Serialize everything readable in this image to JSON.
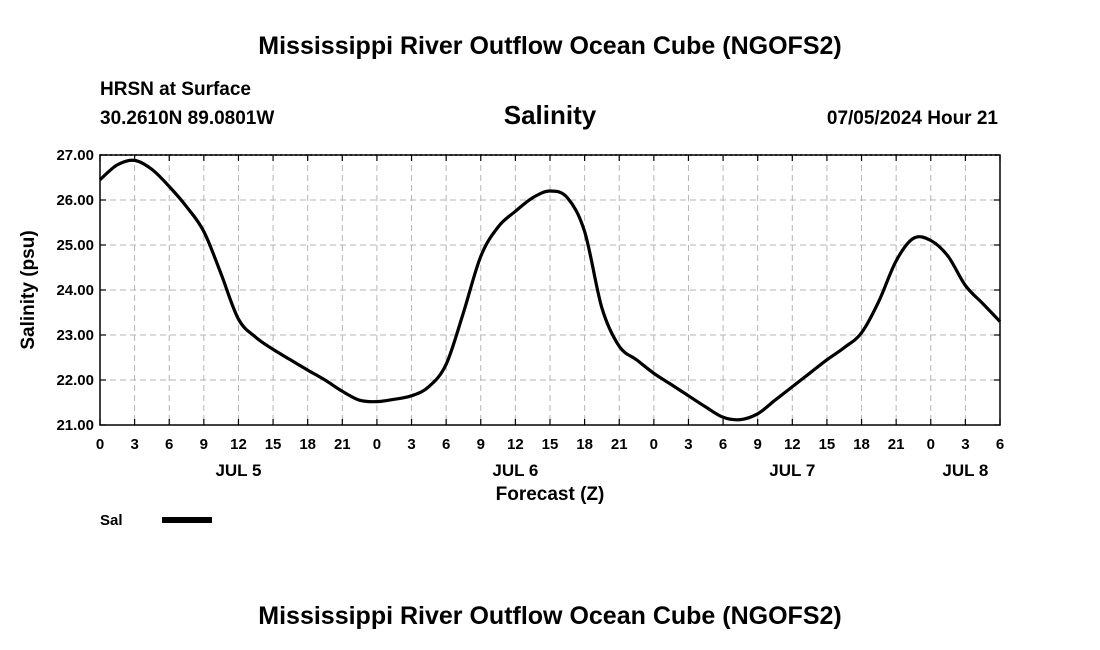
{
  "header": {
    "title_top": "Mississippi River Outflow Ocean Cube (NGOFS2)",
    "title_bottom": "Mississippi River Outflow Ocean Cube (NGOFS2)",
    "station": "HRSN at Surface",
    "coords": "30.2610N  89.0801W",
    "datetime": "07/05/2024 Hour 21"
  },
  "chart_data": {
    "type": "line",
    "title": "Salinity",
    "xlabel": "Forecast (Z)",
    "ylabel": "Salinity (psu)",
    "xlim": [
      0,
      78
    ],
    "ylim": [
      21.0,
      27.0
    ],
    "x_tick_labels": [
      "0",
      "3",
      "6",
      "9",
      "12",
      "15",
      "18",
      "21",
      "0",
      "3",
      "6",
      "9",
      "12",
      "15",
      "18",
      "21",
      "0",
      "3",
      "6",
      "9",
      "12",
      "15",
      "18",
      "21",
      "0",
      "3",
      "6"
    ],
    "y_tick_labels": [
      "21.00",
      "22.00",
      "23.00",
      "24.00",
      "25.00",
      "26.00",
      "27.00"
    ],
    "day_labels": [
      {
        "label": "JUL 5",
        "hour": 12
      },
      {
        "label": "JUL 6",
        "hour": 36
      },
      {
        "label": "JUL 7",
        "hour": 60
      },
      {
        "label": "JUL 8",
        "hour": 75
      }
    ],
    "legend": [
      {
        "label": "Sal"
      }
    ],
    "series": [
      {
        "name": "Sal",
        "x": [
          0,
          1.5,
          3,
          4.5,
          6,
          7.5,
          9,
          10.5,
          12,
          13.5,
          15,
          16.5,
          18,
          19.5,
          21,
          22.5,
          24,
          25.5,
          27,
          28.5,
          30,
          31.5,
          33,
          34.5,
          36,
          37.5,
          39,
          40.5,
          42,
          43.5,
          45,
          46.5,
          48,
          49.5,
          51,
          52.5,
          54,
          55.5,
          57,
          58.5,
          60,
          61.5,
          63,
          64.5,
          66,
          67.5,
          69,
          70.5,
          72,
          73.5,
          75,
          76.5,
          78
        ],
        "y": [
          26.45,
          26.78,
          26.88,
          26.68,
          26.3,
          25.85,
          25.3,
          24.35,
          23.35,
          22.95,
          22.68,
          22.45,
          22.22,
          22.0,
          21.75,
          21.55,
          21.52,
          21.57,
          21.65,
          21.85,
          22.35,
          23.5,
          24.75,
          25.4,
          25.75,
          26.05,
          26.2,
          26.05,
          25.3,
          23.6,
          22.75,
          22.45,
          22.15,
          21.9,
          21.65,
          21.4,
          21.17,
          21.12,
          21.25,
          21.55,
          21.85,
          22.15,
          22.45,
          22.72,
          23.05,
          23.75,
          24.65,
          25.15,
          25.1,
          24.75,
          24.1,
          23.7,
          23.3
        ]
      }
    ]
  }
}
